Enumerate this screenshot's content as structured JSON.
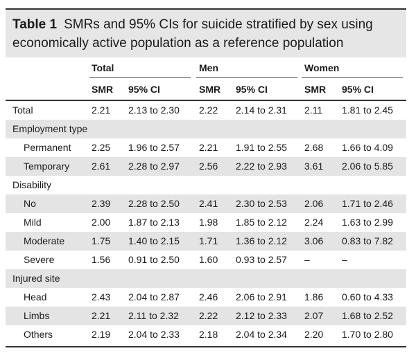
{
  "table": {
    "label": "Table 1",
    "caption_line1": "SMRs and 95% CIs for suicide stratified by sex using",
    "caption_line2": "economically active population as a reference population",
    "groups": [
      "Total",
      "Men",
      "Women"
    ],
    "col_headers": [
      "SMR",
      "95% CI",
      "SMR",
      "95% CI",
      "SMR",
      "95% CI"
    ],
    "rows": [
      {
        "type": "data",
        "label": "Total",
        "indent": false,
        "cells": [
          "2.21",
          "2.13 to 2.30",
          "2.22",
          "2.14 to 2.31",
          "2.11",
          "1.81 to 2.45"
        ]
      },
      {
        "type": "section",
        "label": "Employment type"
      },
      {
        "type": "data",
        "label": "Permanent",
        "indent": true,
        "cells": [
          "2.25",
          "1.96 to 2.57",
          "2.21",
          "1.91 to 2.55",
          "2.68",
          "1.66 to 4.09"
        ]
      },
      {
        "type": "data",
        "label": "Temporary",
        "indent": true,
        "cells": [
          "2.61",
          "2.28 to 2.97",
          "2.56",
          "2.22 to 2.93",
          "3.61",
          "2.06 to 5.85"
        ]
      },
      {
        "type": "section",
        "label": "Disability"
      },
      {
        "type": "data",
        "label": "No",
        "indent": true,
        "cells": [
          "2.39",
          "2.28 to 2.50",
          "2.41",
          "2.30 to 2.53",
          "2.06",
          "1.71 to 2.46"
        ]
      },
      {
        "type": "data",
        "label": "Mild",
        "indent": true,
        "cells": [
          "2.00",
          "1.87 to 2.13",
          "1.98",
          "1.85 to 2.12",
          "2.24",
          "1.63 to 2.99"
        ]
      },
      {
        "type": "data",
        "label": "Moderate",
        "indent": true,
        "cells": [
          "1.75",
          "1.40 to 2.15",
          "1.71",
          "1.36 to 2.12",
          "3.06",
          "0.83 to 7.82"
        ]
      },
      {
        "type": "data",
        "label": "Severe",
        "indent": true,
        "cells": [
          "1.56",
          "0.91 to 2.50",
          "1.60",
          "0.93 to 2.57",
          "–",
          "–"
        ]
      },
      {
        "type": "section",
        "label": "Injured site"
      },
      {
        "type": "data",
        "label": "Head",
        "indent": true,
        "cells": [
          "2.43",
          "2.04 to 2.87",
          "2.46",
          "2.06 to 2.91",
          "1.86",
          "0.60 to 4.33"
        ]
      },
      {
        "type": "data",
        "label": "Limbs",
        "indent": true,
        "cells": [
          "2.21",
          "2.11 to 2.32",
          "2.22",
          "2.12 to 2.33",
          "2.07",
          "1.68 to 2.52"
        ]
      },
      {
        "type": "data",
        "label": "Others",
        "indent": true,
        "cells": [
          "2.19",
          "2.04 to 2.33",
          "2.18",
          "2.04 to 2.34",
          "2.20",
          "1.70 to 2.80"
        ]
      }
    ]
  }
}
